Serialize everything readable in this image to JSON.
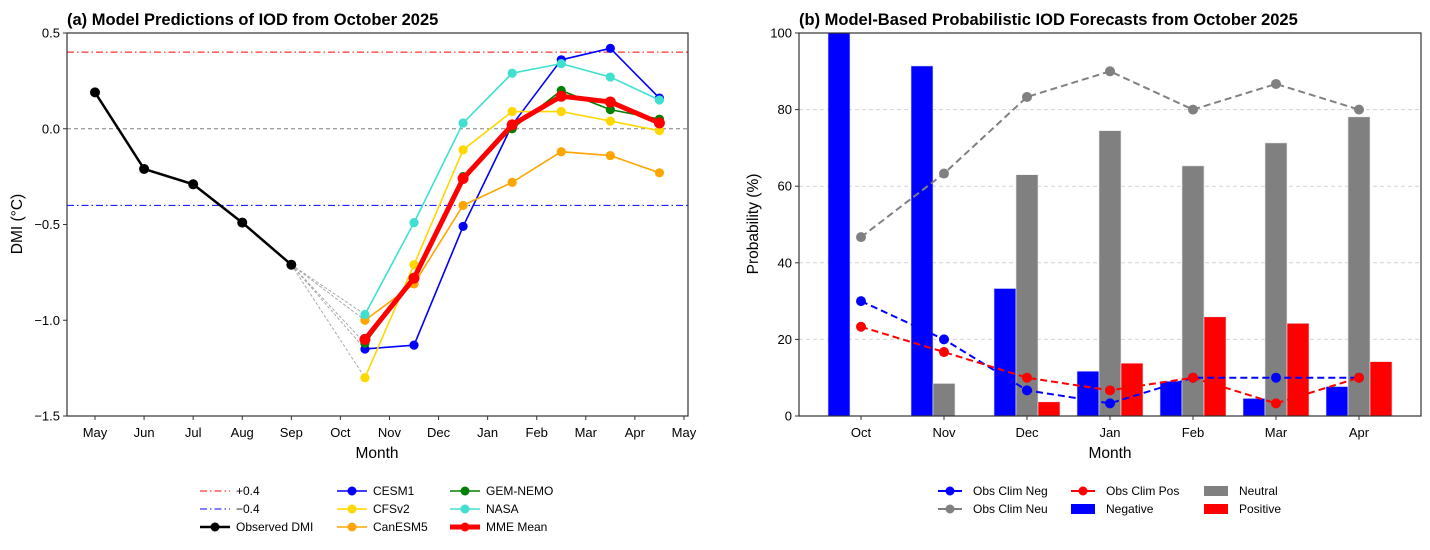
{
  "chart_data": [
    {
      "type": "line",
      "title": "(a) Model Predictions of IOD from October 2025",
      "xlabel": "Month",
      "ylabel": "DMI (°C)",
      "ylim": [
        -1.5,
        0.5
      ],
      "yticks": [
        0.5,
        0.0,
        -0.5,
        -1.0,
        -1.5
      ],
      "ytick_labels": [
        "0.5",
        "0.0",
        "−0.5",
        "−1.0",
        "−1.5"
      ],
      "xtick_labels": [
        "May",
        "Jun",
        "Jul",
        "Aug",
        "Sep",
        "Oct",
        "Nov",
        "Dec",
        "Jan",
        "Feb",
        "Mar",
        "Apr",
        "May"
      ],
      "reference_lines": [
        {
          "name": "+0.4",
          "value": 0.4,
          "color": "#ff0000",
          "style": "dashdot"
        },
        {
          "name": "−0.4",
          "value": -0.4,
          "color": "#0000ff",
          "style": "dashdot"
        },
        {
          "name": "zero",
          "value": 0.0,
          "color": "#808080",
          "style": "dashed"
        }
      ],
      "observed": {
        "name": "Observed DMI",
        "color": "#000000",
        "x": [
          0,
          1,
          2,
          3,
          4
        ],
        "values": [
          0.19,
          -0.21,
          -0.29,
          -0.49,
          -0.71
        ]
      },
      "forecast_x": [
        5.5,
        6.5,
        7.5,
        8.5,
        9.5,
        10.5,
        11.5
      ],
      "forecast_months": [
        "Oct",
        "Nov",
        "Dec",
        "Jan",
        "Feb",
        "Mar",
        "Apr"
      ],
      "series": [
        {
          "name": "CESM1",
          "color": "#0000ff",
          "values": [
            -1.15,
            -1.13,
            -0.51,
            0.02,
            0.36,
            0.42,
            0.16
          ]
        },
        {
          "name": "CFSv2",
          "color": "#ffd700",
          "values": [
            -1.3,
            -0.71,
            -0.11,
            0.09,
            0.09,
            0.04,
            -0.01
          ]
        },
        {
          "name": "CanESM5",
          "color": "#ffa500",
          "values": [
            -1.0,
            -0.81,
            -0.4,
            -0.28,
            -0.12,
            -0.14,
            -0.23
          ]
        },
        {
          "name": "GEM-NEMO",
          "color": "#008000",
          "values": [
            -1.12,
            -0.78,
            -0.25,
            0.0,
            0.2,
            0.1,
            0.05
          ]
        },
        {
          "name": "NASA",
          "color": "#40e0d0",
          "values": [
            -0.97,
            -0.49,
            0.03,
            0.29,
            0.34,
            0.27,
            0.15
          ]
        },
        {
          "name": "MME Mean",
          "color": "#ff0000",
          "values": [
            -1.1,
            -0.78,
            -0.26,
            0.02,
            0.17,
            0.14,
            0.03
          ]
        }
      ],
      "legend": {
        "placement": "below",
        "entries": [
          "+0.4",
          "−0.4",
          "Observed DMI",
          "CESM1",
          "CFSv2",
          "CanESM5",
          "GEM-NEMO",
          "NASA",
          "MME Mean"
        ]
      }
    },
    {
      "type": "bar",
      "title": "(b) Model-Based Probabilistic IOD Forecasts from October 2025",
      "xlabel": "Month",
      "ylabel": "Probability (%)",
      "ylim": [
        0,
        100
      ],
      "yticks": [
        0,
        20,
        40,
        60,
        80,
        100
      ],
      "grid": true,
      "categories": [
        "Oct",
        "Nov",
        "Dec",
        "Jan",
        "Feb",
        "Mar",
        "Apr"
      ],
      "series": [
        {
          "name": "Negative",
          "color": "#0000ff",
          "values": [
            100,
            91.4,
            33.3,
            11.7,
            9.1,
            4.6,
            7.7
          ]
        },
        {
          "name": "Neutral",
          "color": "#808080",
          "values": [
            0,
            8.5,
            63.0,
            74.5,
            65.3,
            71.3,
            78.1
          ]
        },
        {
          "name": "Positive",
          "color": "#ff0000",
          "values": [
            0,
            0,
            3.7,
            13.8,
            25.9,
            24.2,
            14.2
          ]
        }
      ],
      "lines": [
        {
          "name": "Obs Clim Neg",
          "color": "#0000ff",
          "values": [
            30.0,
            20.0,
            6.7,
            3.3,
            10.0,
            10.0,
            10.0
          ]
        },
        {
          "name": "Obs Clim Pos",
          "color": "#ff0000",
          "values": [
            23.3,
            16.7,
            10.0,
            6.7,
            10.0,
            3.3,
            10.0
          ]
        },
        {
          "name": "Obs Clim Neu",
          "color": "#808080",
          "values": [
            46.7,
            63.3,
            83.3,
            90.0,
            80.0,
            86.7,
            80.0
          ]
        }
      ],
      "legend": {
        "placement": "below",
        "entries": [
          "Obs Clim Neg",
          "Obs Clim Neu",
          "Obs Clim Pos",
          "Negative",
          "Neutral",
          "Positive"
        ]
      }
    }
  ]
}
